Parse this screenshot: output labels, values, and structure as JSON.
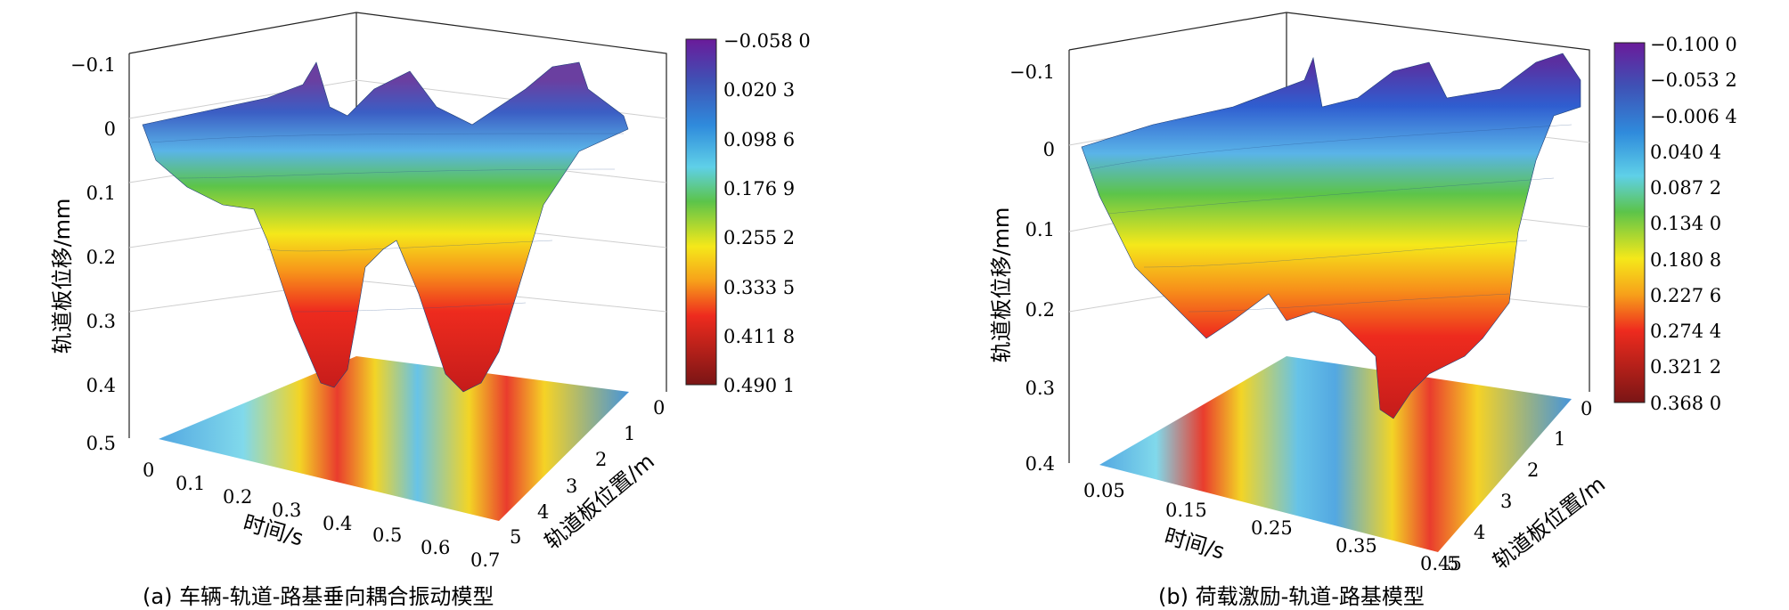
{
  "chart_data": [
    {
      "id": "a",
      "type": "surface3d",
      "caption": "(a)   车辆-轨道-路基垂向耦合振动模型",
      "zlabel": "轨道板位移/mm",
      "xlabel": "时间/s",
      "ylabel": "轨道板位置/m",
      "z_ticks": [
        "−0.1",
        "0",
        "0.1",
        "0.2",
        "0.3",
        "0.4",
        "0.5"
      ],
      "x_ticks": [
        "0",
        "0.1",
        "0.2",
        "0.3",
        "0.4",
        "0.5",
        "0.6",
        "0.7"
      ],
      "y_ticks": [
        "5",
        "4",
        "3",
        "2",
        "1",
        "0"
      ],
      "zlim": [
        -0.1,
        0.5
      ],
      "xlim": [
        0,
        0.7
      ],
      "ylim": [
        0,
        5
      ],
      "colorbar_ticks": [
        "−0.058 0",
        "0.020 3",
        "0.098 6",
        "0.176 9",
        "0.255 2",
        "0.333 5",
        "0.411 8",
        "0.490 1"
      ],
      "colorbar_range": [
        -0.058,
        0.4901
      ],
      "peaks": [
        {
          "time": 0.32,
          "displacement": 0.42
        },
        {
          "time": 0.52,
          "displacement": 0.43
        }
      ]
    },
    {
      "id": "b",
      "type": "surface3d",
      "caption": "(b)   荷载激励-轨道-路基模型",
      "zlabel": "轨道板位移/mm",
      "xlabel": "时间/s",
      "ylabel": "轨道板位置/m",
      "z_ticks": [
        "−0.1",
        "0",
        "0.1",
        "0.2",
        "0.3",
        "0.4"
      ],
      "x_ticks": [
        "0.05",
        "0.15",
        "0.25",
        "0.35",
        "0.45"
      ],
      "y_ticks": [
        "5",
        "4",
        "3",
        "2",
        "1",
        "0"
      ],
      "zlim": [
        -0.1,
        0.4
      ],
      "xlim": [
        0,
        0.47
      ],
      "ylim": [
        0,
        5
      ],
      "colorbar_ticks": [
        "−0.100 0",
        "−0.053 2",
        "−0.006 4",
        "0.040 4",
        "0.087 2",
        "0.134 0",
        "0.180 8",
        "0.227 6",
        "0.274 4",
        "0.321 2",
        "0.368 0"
      ],
      "colorbar_range": [
        -0.1,
        0.368
      ],
      "peaks": [
        {
          "time": 0.15,
          "displacement": 0.29
        },
        {
          "time": 0.33,
          "displacement": 0.35
        }
      ]
    }
  ]
}
